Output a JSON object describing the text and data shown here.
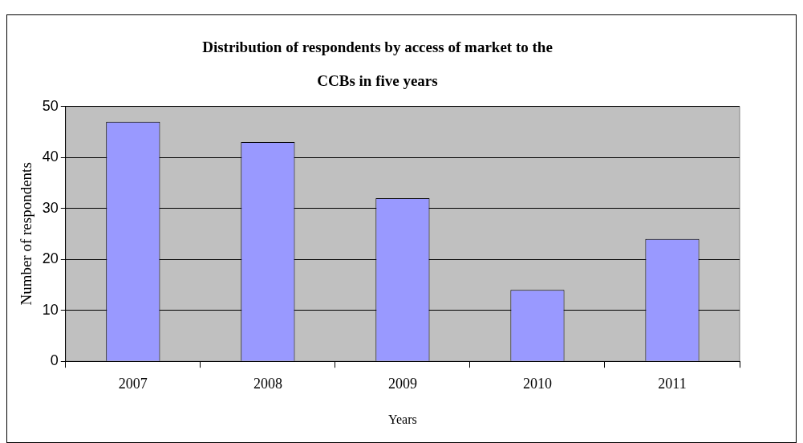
{
  "chart_data": {
    "type": "bar",
    "title": "Distribution of respondents by access of market to the CCBs in five years",
    "xlabel": "Years",
    "ylabel": "Number of respondents",
    "categories": [
      "2007",
      "2008",
      "2009",
      "2010",
      "2011"
    ],
    "values": [
      47,
      43,
      32,
      14,
      24
    ],
    "color": "#9999ff",
    "ylim": [
      0,
      50
    ],
    "yticks": [
      0,
      10,
      20,
      30,
      40,
      50
    ],
    "grid": "y",
    "legend": false
  }
}
